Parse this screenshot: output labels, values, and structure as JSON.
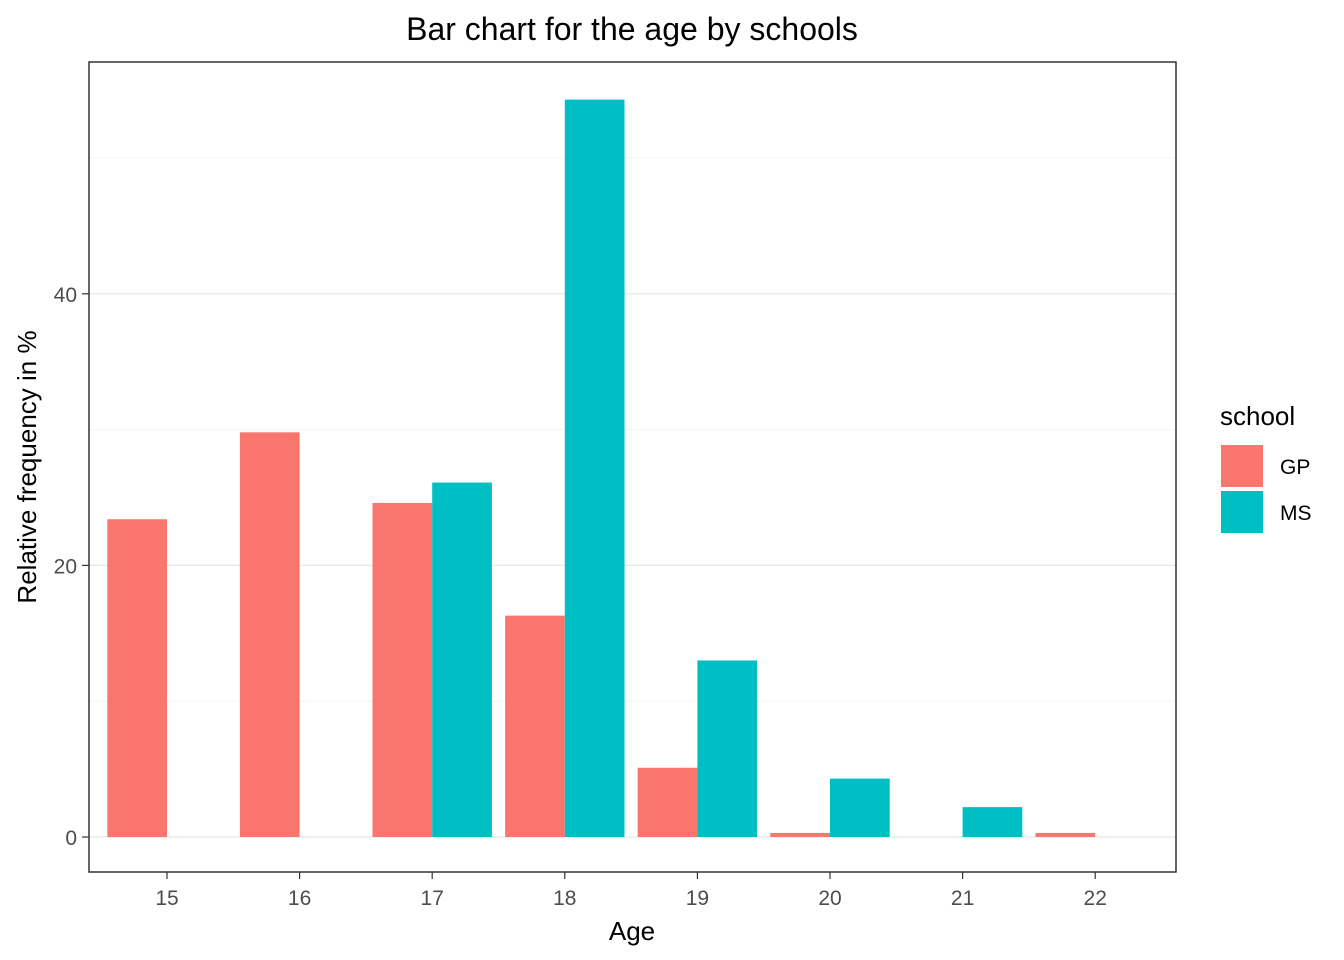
{
  "chart_data": {
    "type": "bar",
    "title": "Bar chart for the age by schools",
    "xlabel": "Age",
    "ylabel": "Relative frequency in %",
    "categories": [
      "15",
      "16",
      "17",
      "18",
      "19",
      "20",
      "21",
      "22"
    ],
    "series": [
      {
        "name": "GP",
        "color": "#F8766D",
        "values": [
          23.4,
          29.8,
          24.6,
          16.3,
          5.1,
          0.3,
          null,
          0.3
        ]
      },
      {
        "name": "MS",
        "color": "#00BFC4",
        "values": [
          null,
          null,
          26.1,
          54.3,
          13.0,
          4.3,
          2.2,
          null
        ]
      }
    ],
    "ylim": [
      0,
      55
    ],
    "y_ticks": [
      0,
      20,
      40
    ],
    "grid": true,
    "legend": {
      "title": "school",
      "position": "right"
    }
  }
}
